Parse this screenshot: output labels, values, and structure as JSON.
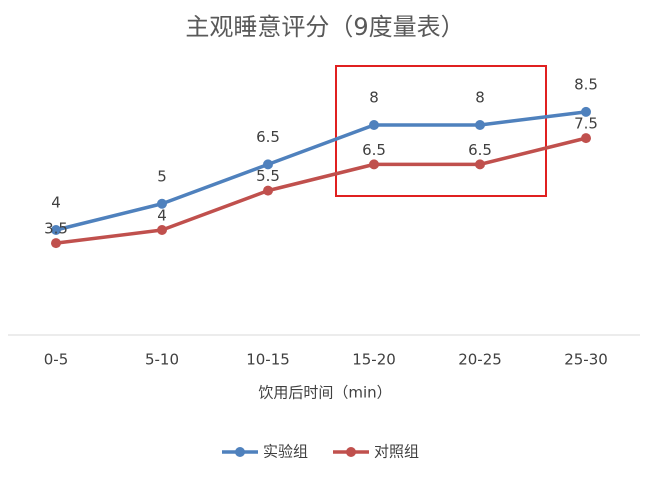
{
  "chart_data": {
    "type": "line",
    "title": "主观睡意评分（9度量表）",
    "x_label": "饮用后时间（min）",
    "categories": [
      "0-5",
      "5-10",
      "10-15",
      "15-20",
      "20-25",
      "25-30"
    ],
    "series": [
      {
        "name": "实验组",
        "color": "#4f81bd",
        "values": [
          4,
          5,
          6.5,
          8,
          8,
          8.5
        ]
      },
      {
        "name": "对照组",
        "color": "#c0504d",
        "values": [
          3.5,
          4,
          5.5,
          6.5,
          6.5,
          7.5
        ]
      }
    ],
    "ylim": [
      0,
      10
    ],
    "legend": "bottom"
  }
}
